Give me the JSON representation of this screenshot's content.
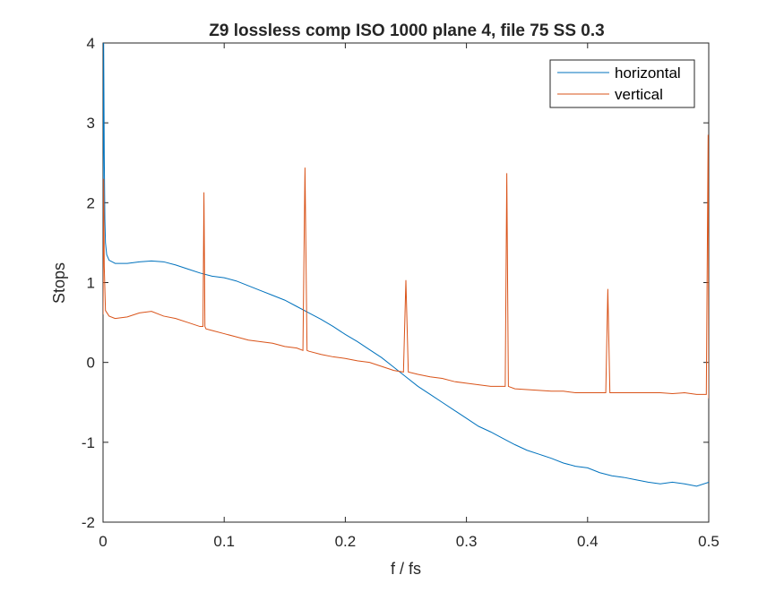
{
  "chart_data": {
    "type": "line",
    "title": "Z9 lossless comp ISO 1000 plane 4, file 75 SS 0.3",
    "xlabel": "f / fs",
    "ylabel": "Stops",
    "xlim": [
      0,
      0.5
    ],
    "ylim": [
      -2,
      4
    ],
    "xticks": [
      0,
      0.1,
      0.2,
      0.3,
      0.4,
      0.5
    ],
    "xtick_labels": [
      "0",
      "0.1",
      "0.2",
      "0.3",
      "0.4",
      "0.5"
    ],
    "yticks": [
      -2,
      -1,
      0,
      1,
      2,
      3,
      4
    ],
    "ytick_labels": [
      "-2",
      "-1",
      "0",
      "1",
      "2",
      "3",
      "4"
    ],
    "grid": false,
    "legend_position": "top-right",
    "series": [
      {
        "name": "horizontal",
        "color": "#0072BD",
        "x": [
          0,
          0.0005,
          0.001,
          0.0015,
          0.002,
          0.003,
          0.005,
          0.01,
          0.02,
          0.03,
          0.04,
          0.05,
          0.06,
          0.07,
          0.08,
          0.09,
          0.1,
          0.11,
          0.12,
          0.13,
          0.14,
          0.15,
          0.16,
          0.17,
          0.18,
          0.19,
          0.2,
          0.21,
          0.22,
          0.23,
          0.24,
          0.25,
          0.26,
          0.27,
          0.28,
          0.29,
          0.3,
          0.31,
          0.32,
          0.33,
          0.34,
          0.35,
          0.36,
          0.37,
          0.38,
          0.39,
          0.4,
          0.41,
          0.42,
          0.43,
          0.44,
          0.45,
          0.46,
          0.47,
          0.48,
          0.49,
          0.5
        ],
        "y": [
          1.3,
          4.0,
          2.6,
          1.8,
          1.5,
          1.35,
          1.28,
          1.24,
          1.24,
          1.26,
          1.27,
          1.26,
          1.22,
          1.17,
          1.12,
          1.08,
          1.06,
          1.02,
          0.96,
          0.9,
          0.84,
          0.78,
          0.7,
          0.62,
          0.54,
          0.45,
          0.35,
          0.26,
          0.16,
          0.06,
          -0.06,
          -0.18,
          -0.3,
          -0.4,
          -0.5,
          -0.6,
          -0.7,
          -0.8,
          -0.87,
          -0.95,
          -1.03,
          -1.1,
          -1.15,
          -1.2,
          -1.26,
          -1.3,
          -1.32,
          -1.38,
          -1.42,
          -1.44,
          -1.47,
          -1.5,
          -1.52,
          -1.5,
          -1.52,
          -1.55,
          -1.5
        ]
      },
      {
        "name": "vertical",
        "color": "#D95319",
        "x": [
          0,
          0.0005,
          0.001,
          0.002,
          0.005,
          0.01,
          0.02,
          0.03,
          0.04,
          0.05,
          0.06,
          0.07,
          0.08,
          0.0825,
          0.0833,
          0.0841,
          0.085,
          0.09,
          0.1,
          0.11,
          0.12,
          0.13,
          0.14,
          0.15,
          0.16,
          0.165,
          0.1667,
          0.1684,
          0.17,
          0.18,
          0.19,
          0.2,
          0.21,
          0.22,
          0.23,
          0.24,
          0.248,
          0.25,
          0.252,
          0.26,
          0.27,
          0.28,
          0.29,
          0.3,
          0.31,
          0.32,
          0.33,
          0.332,
          0.3333,
          0.3346,
          0.34,
          0.35,
          0.36,
          0.37,
          0.38,
          0.39,
          0.4,
          0.41,
          0.415,
          0.4167,
          0.4184,
          0.43,
          0.44,
          0.45,
          0.46,
          0.47,
          0.48,
          0.49,
          0.498,
          0.4995,
          0.5
        ],
        "y": [
          0.6,
          2.3,
          1.2,
          0.65,
          0.58,
          0.55,
          0.57,
          0.62,
          0.64,
          0.58,
          0.55,
          0.5,
          0.45,
          0.45,
          2.13,
          0.45,
          0.42,
          0.4,
          0.36,
          0.32,
          0.28,
          0.26,
          0.24,
          0.2,
          0.18,
          0.15,
          2.44,
          0.15,
          0.14,
          0.1,
          0.07,
          0.05,
          0.02,
          0.0,
          -0.05,
          -0.1,
          -0.12,
          1.03,
          -0.12,
          -0.15,
          -0.18,
          -0.2,
          -0.24,
          -0.26,
          -0.28,
          -0.3,
          -0.3,
          -0.3,
          2.37,
          -0.3,
          -0.33,
          -0.34,
          -0.35,
          -0.36,
          -0.36,
          -0.38,
          -0.38,
          -0.38,
          -0.38,
          0.92,
          -0.38,
          -0.38,
          -0.38,
          -0.38,
          -0.38,
          -0.39,
          -0.38,
          -0.4,
          -0.4,
          2.85,
          -0.45
        ]
      }
    ]
  }
}
